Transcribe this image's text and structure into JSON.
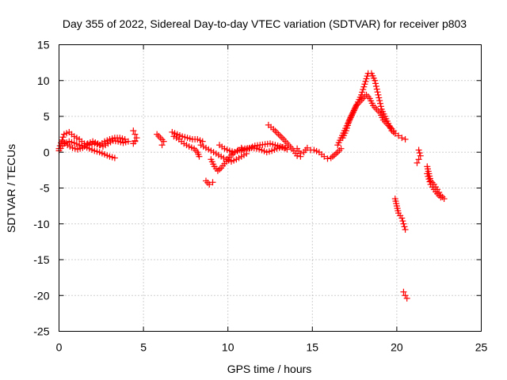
{
  "chart_data": {
    "type": "scatter",
    "title": "Day 355 of 2022, Sidereal Day-to-day VTEC variation (SDTVAR) for receiver p803",
    "xlabel": "GPS time / hours",
    "ylabel": "SDTVAR / TECUs",
    "xlim": [
      0,
      25
    ],
    "ylim": [
      -25,
      15
    ],
    "xticks": [
      0,
      5,
      10,
      15,
      20,
      25
    ],
    "yticks": [
      15,
      10,
      5,
      0,
      -5,
      -10,
      -15,
      -20,
      -25
    ],
    "grid": true,
    "marker": "plus",
    "color": "#ff0000",
    "series": [
      {
        "name": "SDTVAR",
        "segments": [
          [
            [
              0.0,
              0.5
            ],
            [
              0.3,
              2.5
            ],
            [
              0.6,
              2.8
            ],
            [
              0.9,
              2.2
            ],
            [
              1.2,
              1.8
            ],
            [
              1.5,
              1.2
            ],
            [
              1.8,
              1.0
            ],
            [
              2.1,
              1.2
            ],
            [
              2.4,
              1.0
            ],
            [
              2.7,
              1.5
            ],
            [
              3.0,
              1.8
            ],
            [
              3.3,
              2.0
            ],
            [
              3.6,
              2.0
            ],
            [
              3.9,
              1.8
            ]
          ],
          [
            [
              0.0,
              0.2
            ],
            [
              0.3,
              1.2
            ],
            [
              0.6,
              1.5
            ],
            [
              0.9,
              1.3
            ],
            [
              1.2,
              1.0
            ],
            [
              1.5,
              0.8
            ],
            [
              1.8,
              0.5
            ],
            [
              2.1,
              0.2
            ],
            [
              2.4,
              0.0
            ],
            [
              2.7,
              -0.3
            ],
            [
              3.0,
              -0.6
            ],
            [
              3.3,
              -0.8
            ]
          ],
          [
            [
              0.2,
              1.5
            ],
            [
              0.5,
              1.0
            ],
            [
              0.8,
              0.6
            ],
            [
              1.1,
              0.4
            ],
            [
              1.4,
              0.6
            ],
            [
              1.7,
              1.2
            ],
            [
              2.0,
              1.5
            ],
            [
              2.3,
              1.2
            ],
            [
              2.6,
              0.8
            ],
            [
              2.9,
              1.2
            ],
            [
              3.2,
              1.6
            ],
            [
              3.5,
              1.5
            ],
            [
              3.8,
              1.3
            ],
            [
              4.1,
              1.5
            ]
          ],
          [
            [
              4.4,
              3.0
            ],
            [
              4.5,
              2.5
            ],
            [
              4.6,
              2.0
            ],
            [
              4.4,
              1.2
            ],
            [
              4.5,
              1.5
            ]
          ],
          [
            [
              5.8,
              2.5
            ],
            [
              6.0,
              2.0
            ],
            [
              6.2,
              1.5
            ],
            [
              6.1,
              1.0
            ]
          ],
          [
            [
              6.7,
              2.8
            ],
            [
              7.0,
              2.5
            ],
            [
              7.3,
              2.2
            ],
            [
              7.6,
              2.0
            ],
            [
              7.9,
              1.8
            ],
            [
              8.2,
              1.8
            ],
            [
              8.5,
              1.5
            ]
          ],
          [
            [
              6.8,
              2.2
            ],
            [
              7.1,
              1.8
            ],
            [
              7.4,
              1.2
            ],
            [
              7.7,
              0.8
            ],
            [
              8.0,
              0.5
            ],
            [
              8.2,
              0.0
            ],
            [
              8.3,
              -0.6
            ]
          ],
          [
            [
              8.4,
              1.0
            ],
            [
              8.7,
              0.6
            ],
            [
              9.0,
              0.2
            ],
            [
              9.3,
              -0.2
            ],
            [
              9.6,
              -0.6
            ],
            [
              9.9,
              -1.0
            ],
            [
              10.2,
              -1.3
            ],
            [
              10.5,
              -1.0
            ],
            [
              10.8,
              -0.6
            ],
            [
              11.1,
              -0.2
            ]
          ],
          [
            [
              8.7,
              -4.0
            ],
            [
              8.9,
              -4.5
            ],
            [
              9.1,
              -4.2
            ]
          ],
          [
            [
              9.0,
              -1.0
            ],
            [
              9.2,
              -2.0
            ],
            [
              9.4,
              -2.6
            ],
            [
              9.6,
              -2.2
            ],
            [
              9.8,
              -1.6
            ],
            [
              10.0,
              -1.0
            ],
            [
              10.2,
              -0.4
            ],
            [
              10.4,
              0.0
            ],
            [
              10.6,
              0.3
            ],
            [
              10.8,
              0.6
            ]
          ],
          [
            [
              9.5,
              1.0
            ],
            [
              9.8,
              0.5
            ],
            [
              10.1,
              0.2
            ],
            [
              10.4,
              0.0
            ],
            [
              10.7,
              0.3
            ],
            [
              11.0,
              0.5
            ],
            [
              11.3,
              0.6
            ],
            [
              11.6,
              0.9
            ],
            [
              11.9,
              1.0
            ],
            [
              12.2,
              1.1
            ],
            [
              12.5,
              1.2
            ],
            [
              12.8,
              1.0
            ],
            [
              13.1,
              0.8
            ],
            [
              13.4,
              0.6
            ]
          ],
          [
            [
              10.8,
              0.2
            ],
            [
              11.1,
              0.4
            ],
            [
              11.4,
              0.6
            ],
            [
              11.7,
              0.5
            ],
            [
              12.0,
              0.3
            ],
            [
              12.3,
              0.0
            ],
            [
              12.6,
              0.2
            ],
            [
              12.9,
              0.5
            ],
            [
              13.2,
              0.7
            ],
            [
              13.5,
              0.4
            ]
          ],
          [
            [
              12.4,
              3.8
            ],
            [
              12.7,
              3.2
            ],
            [
              13.0,
              2.5
            ],
            [
              13.3,
              1.8
            ],
            [
              13.6,
              1.0
            ],
            [
              13.9,
              0.2
            ],
            [
              14.1,
              -0.5
            ],
            [
              14.3,
              -0.6
            ]
          ],
          [
            [
              14.1,
              0.5
            ],
            [
              14.3,
              -0.2
            ],
            [
              14.5,
              0.0
            ],
            [
              14.7,
              0.6
            ],
            [
              14.9,
              0.3
            ]
          ],
          [
            [
              15.1,
              0.3
            ],
            [
              15.4,
              0.0
            ],
            [
              15.7,
              -0.6
            ],
            [
              15.9,
              -0.9
            ],
            [
              16.1,
              -0.8
            ],
            [
              16.3,
              -0.4
            ],
            [
              16.5,
              0.0
            ],
            [
              16.7,
              0.5
            ]
          ],
          [
            [
              16.5,
              1.0
            ],
            [
              16.7,
              2.0
            ],
            [
              16.9,
              3.0
            ],
            [
              17.1,
              4.0
            ],
            [
              17.3,
              5.0
            ],
            [
              17.5,
              6.0
            ],
            [
              17.7,
              7.0
            ],
            [
              17.9,
              8.0
            ],
            [
              18.1,
              9.5
            ],
            [
              18.3,
              11.0
            ],
            [
              18.5,
              11.0
            ],
            [
              18.7,
              10.0
            ],
            [
              18.9,
              8.0
            ],
            [
              19.1,
              6.0
            ],
            [
              19.3,
              5.0
            ],
            [
              19.5,
              4.0
            ],
            [
              19.7,
              3.0
            ],
            [
              19.9,
              2.6
            ],
            [
              20.1,
              2.3
            ],
            [
              20.3,
              2.0
            ],
            [
              20.5,
              1.8
            ]
          ],
          [
            [
              16.8,
              2.0
            ],
            [
              17.0,
              3.0
            ],
            [
              17.2,
              4.5
            ],
            [
              17.4,
              5.5
            ],
            [
              17.6,
              6.5
            ],
            [
              17.8,
              7.0
            ],
            [
              18.0,
              7.5
            ],
            [
              18.2,
              8.0
            ],
            [
              18.4,
              7.5
            ],
            [
              18.6,
              6.5
            ],
            [
              18.8,
              6.0
            ],
            [
              19.0,
              5.5
            ],
            [
              19.2,
              4.5
            ],
            [
              19.4,
              4.0
            ],
            [
              19.6,
              3.5
            ],
            [
              19.8,
              3.0
            ]
          ],
          [
            [
              19.9,
              -6.5
            ],
            [
              20.0,
              -7.5
            ],
            [
              20.1,
              -8.5
            ],
            [
              20.3,
              -9.2
            ],
            [
              20.4,
              -10.0
            ],
            [
              20.5,
              -10.8
            ]
          ],
          [
            [
              20.4,
              -19.5
            ],
            [
              20.5,
              -20.0
            ],
            [
              20.6,
              -20.4
            ]
          ],
          [
            [
              21.3,
              0.3
            ],
            [
              21.4,
              -0.5
            ],
            [
              21.3,
              -1.0
            ],
            [
              21.2,
              -1.5
            ]
          ],
          [
            [
              21.8,
              -2.0
            ],
            [
              21.9,
              -3.0
            ],
            [
              22.0,
              -4.0
            ],
            [
              22.2,
              -4.5
            ],
            [
              22.4,
              -5.2
            ],
            [
              22.6,
              -6.0
            ],
            [
              22.8,
              -6.5
            ]
          ],
          [
            [
              21.8,
              -3.0
            ],
            [
              22.0,
              -4.5
            ],
            [
              22.2,
              -5.2
            ],
            [
              22.4,
              -5.8
            ],
            [
              22.6,
              -6.3
            ]
          ]
        ]
      }
    ]
  }
}
